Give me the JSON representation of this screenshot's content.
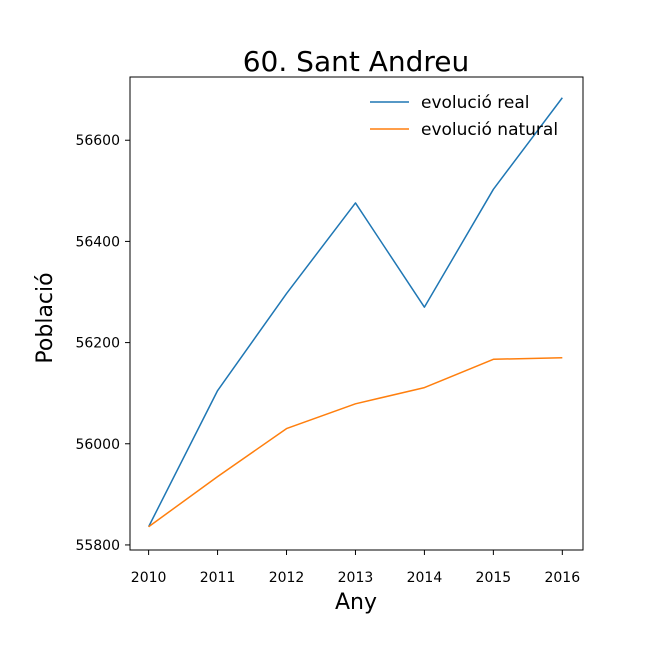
{
  "chart_data": {
    "type": "line",
    "title": "60. Sant Andreu",
    "xlabel": "Any",
    "ylabel": "Població",
    "x": [
      2010,
      2011,
      2012,
      2013,
      2014,
      2015,
      2016
    ],
    "xlim": [
      2009.73,
      2016.3
    ],
    "ylim": [
      55790,
      56725
    ],
    "yticks": [
      55800,
      56000,
      56200,
      56400,
      56600
    ],
    "grid": false,
    "legend_position": "top-right",
    "series": [
      {
        "name": "evolució real",
        "color": "#1f77b4",
        "values": [
          55836,
          56105,
          56297,
          56476,
          56270,
          56503,
          56684
        ]
      },
      {
        "name": "evolució natural",
        "color": "#ff7f0e",
        "values": [
          55836,
          55935,
          56030,
          56079,
          56111,
          56167,
          56170
        ]
      }
    ]
  }
}
